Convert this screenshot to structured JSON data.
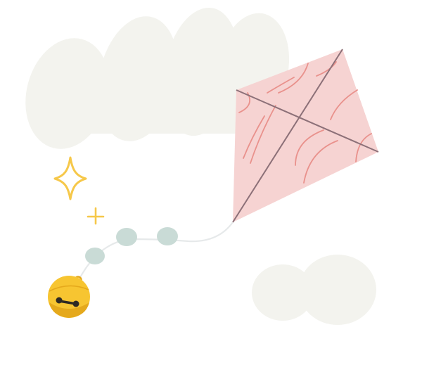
{
  "scene": {
    "subjects": [
      "cloud-large",
      "cloud-small",
      "kite",
      "kite-tail-bows",
      "bell",
      "sparkle-large",
      "sparkle-small"
    ]
  },
  "colors": {
    "background": "#ffffff",
    "cloud": "#f3f3ee",
    "kite_fill": "#f6d3d2",
    "kite_cross": "#8c7078",
    "kite_swirl": "#e9918c",
    "tail_string": "#e6e9ea",
    "tail_bow": "#c9dbd6",
    "bell": "#f7c531",
    "bell_shadow": "#e5a91c",
    "bell_slot": "#2f2a24",
    "sparkle": "#f6c84a"
  }
}
